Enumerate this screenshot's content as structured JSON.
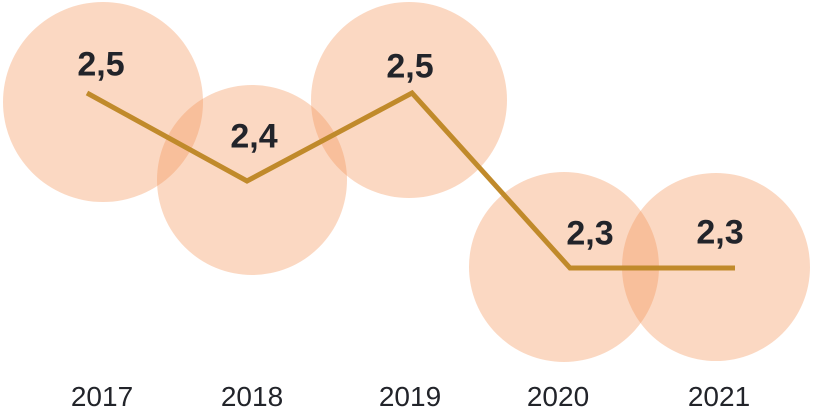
{
  "chart_data": {
    "type": "line",
    "categories": [
      "2017",
      "2018",
      "2019",
      "2020",
      "2021"
    ],
    "values": [
      2.5,
      2.4,
      2.5,
      2.3,
      2.3
    ],
    "value_labels": [
      "2,5",
      "2,4",
      "2,5",
      "2,3",
      "2,3"
    ],
    "decimal_separator": ",",
    "title": "",
    "xlabel": "",
    "ylabel": "",
    "grid": "off",
    "legend": "none",
    "line_color": "#C08A2B",
    "line_width": 5,
    "bubble_color": "#F49255",
    "bubble_opacity": 0.36,
    "label_color": "#22242A",
    "background_color": "#FFFFFF"
  }
}
